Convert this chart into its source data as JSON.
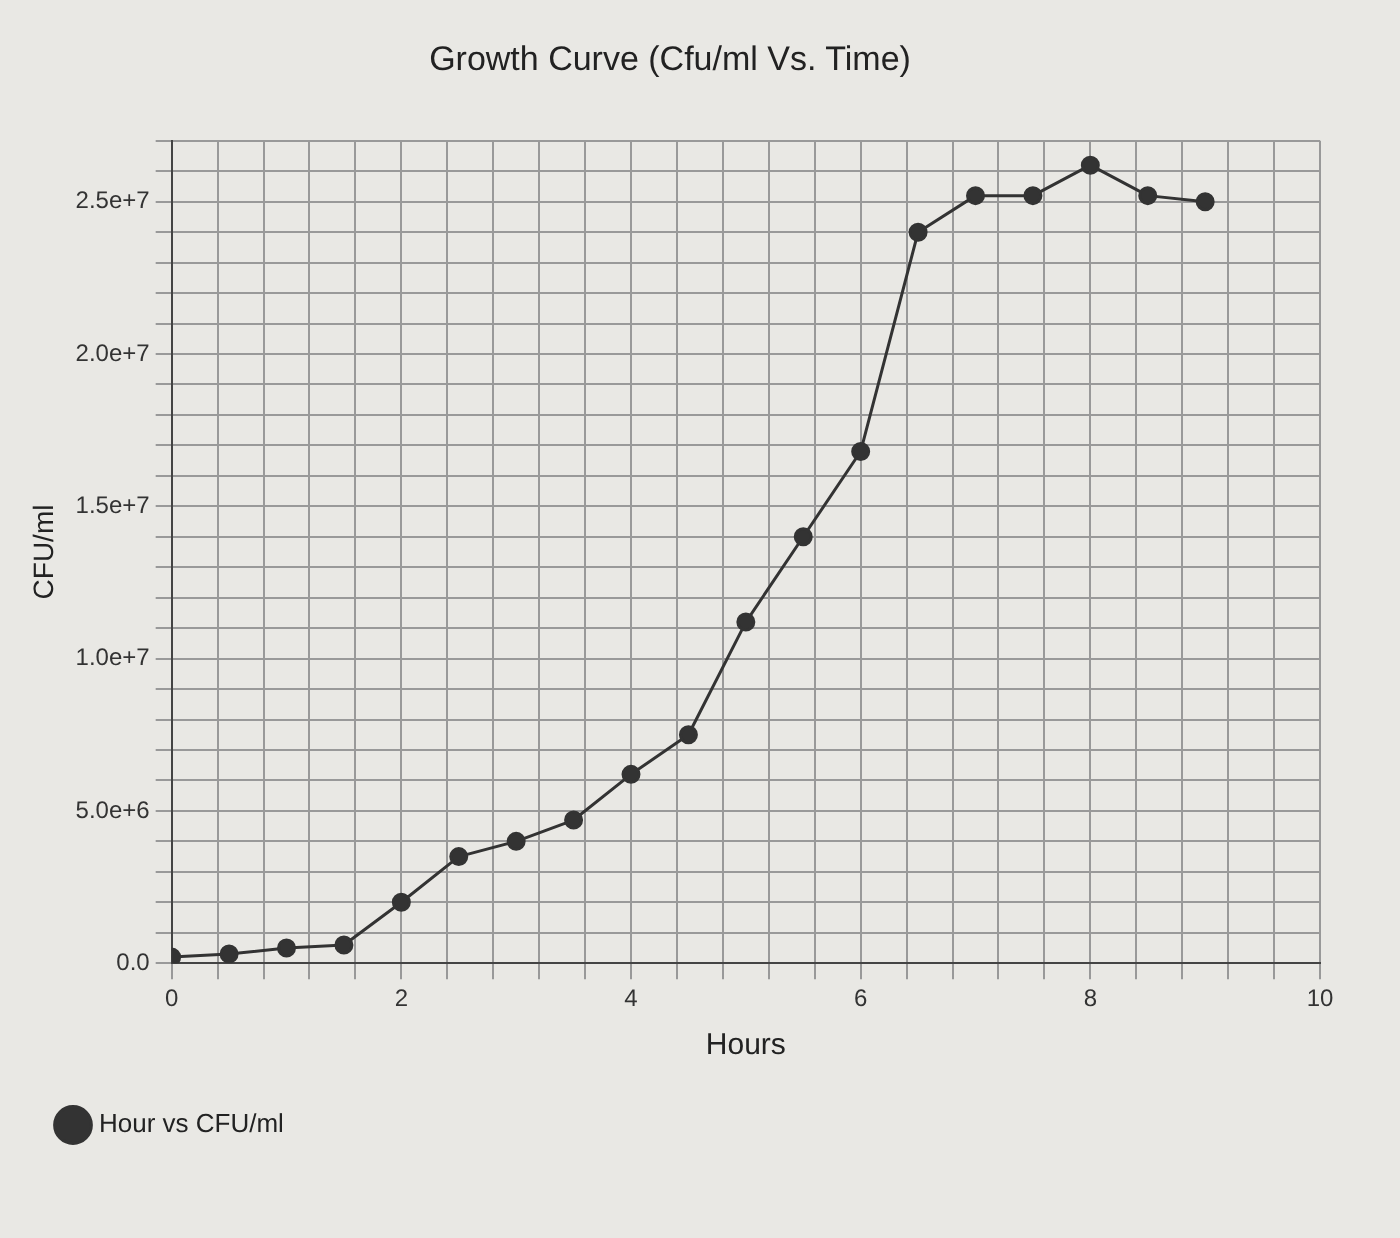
{
  "chart_data": {
    "type": "line",
    "title": "Growth Curve (Cfu/ml Vs. Time)",
    "xlabel": "Hours",
    "ylabel": "CFU/ml",
    "x": [
      0,
      0.5,
      1,
      1.5,
      2,
      2.5,
      3,
      3.5,
      4,
      4.5,
      5,
      5.5,
      6,
      6.5,
      7,
      7.5,
      8,
      8.5,
      9
    ],
    "series": [
      {
        "name": "Hour vs CFU/ml",
        "color": "#333333",
        "values": [
          200000,
          300000,
          500000,
          600000,
          2000000,
          3500000,
          4000000,
          4700000,
          6200000,
          7500000,
          11200000,
          14000000,
          16800000,
          24000000,
          25200000,
          25200000,
          26200000,
          25200000,
          25000000
        ]
      }
    ],
    "xlim": [
      0,
      10
    ],
    "xticks": [
      0,
      {
        "value": 0.4,
        "label": null
      },
      {
        "value": 0.8,
        "label": null
      },
      {
        "value": 1.2,
        "label": null
      },
      {
        "value": 1.6,
        "label": null
      },
      2,
      {
        "value": 2.4,
        "label": null
      },
      {
        "value": 2.8,
        "label": null
      },
      {
        "value": 3.2,
        "label": null
      },
      {
        "value": 3.6,
        "label": null
      },
      4,
      {
        "value": 4.4,
        "label": null
      },
      {
        "value": 4.8,
        "label": null
      },
      {
        "value": 5.2,
        "label": null
      },
      {
        "value": 5.6,
        "label": null
      },
      6,
      {
        "value": 6.4,
        "label": null
      },
      {
        "value": 6.8,
        "label": null
      },
      {
        "value": 7.2,
        "label": null
      },
      {
        "value": 7.6,
        "label": null
      },
      8,
      {
        "value": 8.4,
        "label": null
      },
      {
        "value": 8.8,
        "label": null
      },
      {
        "value": 9.2,
        "label": null
      },
      {
        "value": 9.6,
        "label": null
      },
      10
    ],
    "ylim": [
      0,
      27000000
    ],
    "yticks": [
      {
        "value": 0,
        "label": "0.0"
      },
      {
        "value": 1000000,
        "label": null
      },
      {
        "value": 2000000,
        "label": null
      },
      {
        "value": 3000000,
        "label": null
      },
      {
        "value": 4000000,
        "label": null
      },
      {
        "value": 5000000,
        "label": "5.0e+6"
      },
      {
        "value": 6000000,
        "label": null
      },
      {
        "value": 7000000,
        "label": null
      },
      {
        "value": 8000000,
        "label": null
      },
      {
        "value": 9000000,
        "label": null
      },
      {
        "value": 10000000,
        "label": "1.0e+7"
      },
      {
        "value": 11000000,
        "label": null
      },
      {
        "value": 12000000,
        "label": null
      },
      {
        "value": 13000000,
        "label": null
      },
      {
        "value": 14000000,
        "label": null
      },
      {
        "value": 15000000,
        "label": "1.5e+7"
      },
      {
        "value": 16000000,
        "label": null
      },
      {
        "value": 17000000,
        "label": null
      },
      {
        "value": 18000000,
        "label": null
      },
      {
        "value": 19000000,
        "label": null
      },
      {
        "value": 20000000,
        "label": "2.0e+7"
      },
      {
        "value": 21000000,
        "label": null
      },
      {
        "value": 22000000,
        "label": null
      },
      {
        "value": 23000000,
        "label": null
      },
      {
        "value": 24000000,
        "label": null
      },
      {
        "value": 25000000,
        "label": "2.5e+7"
      },
      {
        "value": 26000000,
        "label": null
      },
      {
        "value": 27000000,
        "label": null
      }
    ],
    "grid": true,
    "legend": "bottom left",
    "marker": "circle",
    "line_style": "solid"
  }
}
